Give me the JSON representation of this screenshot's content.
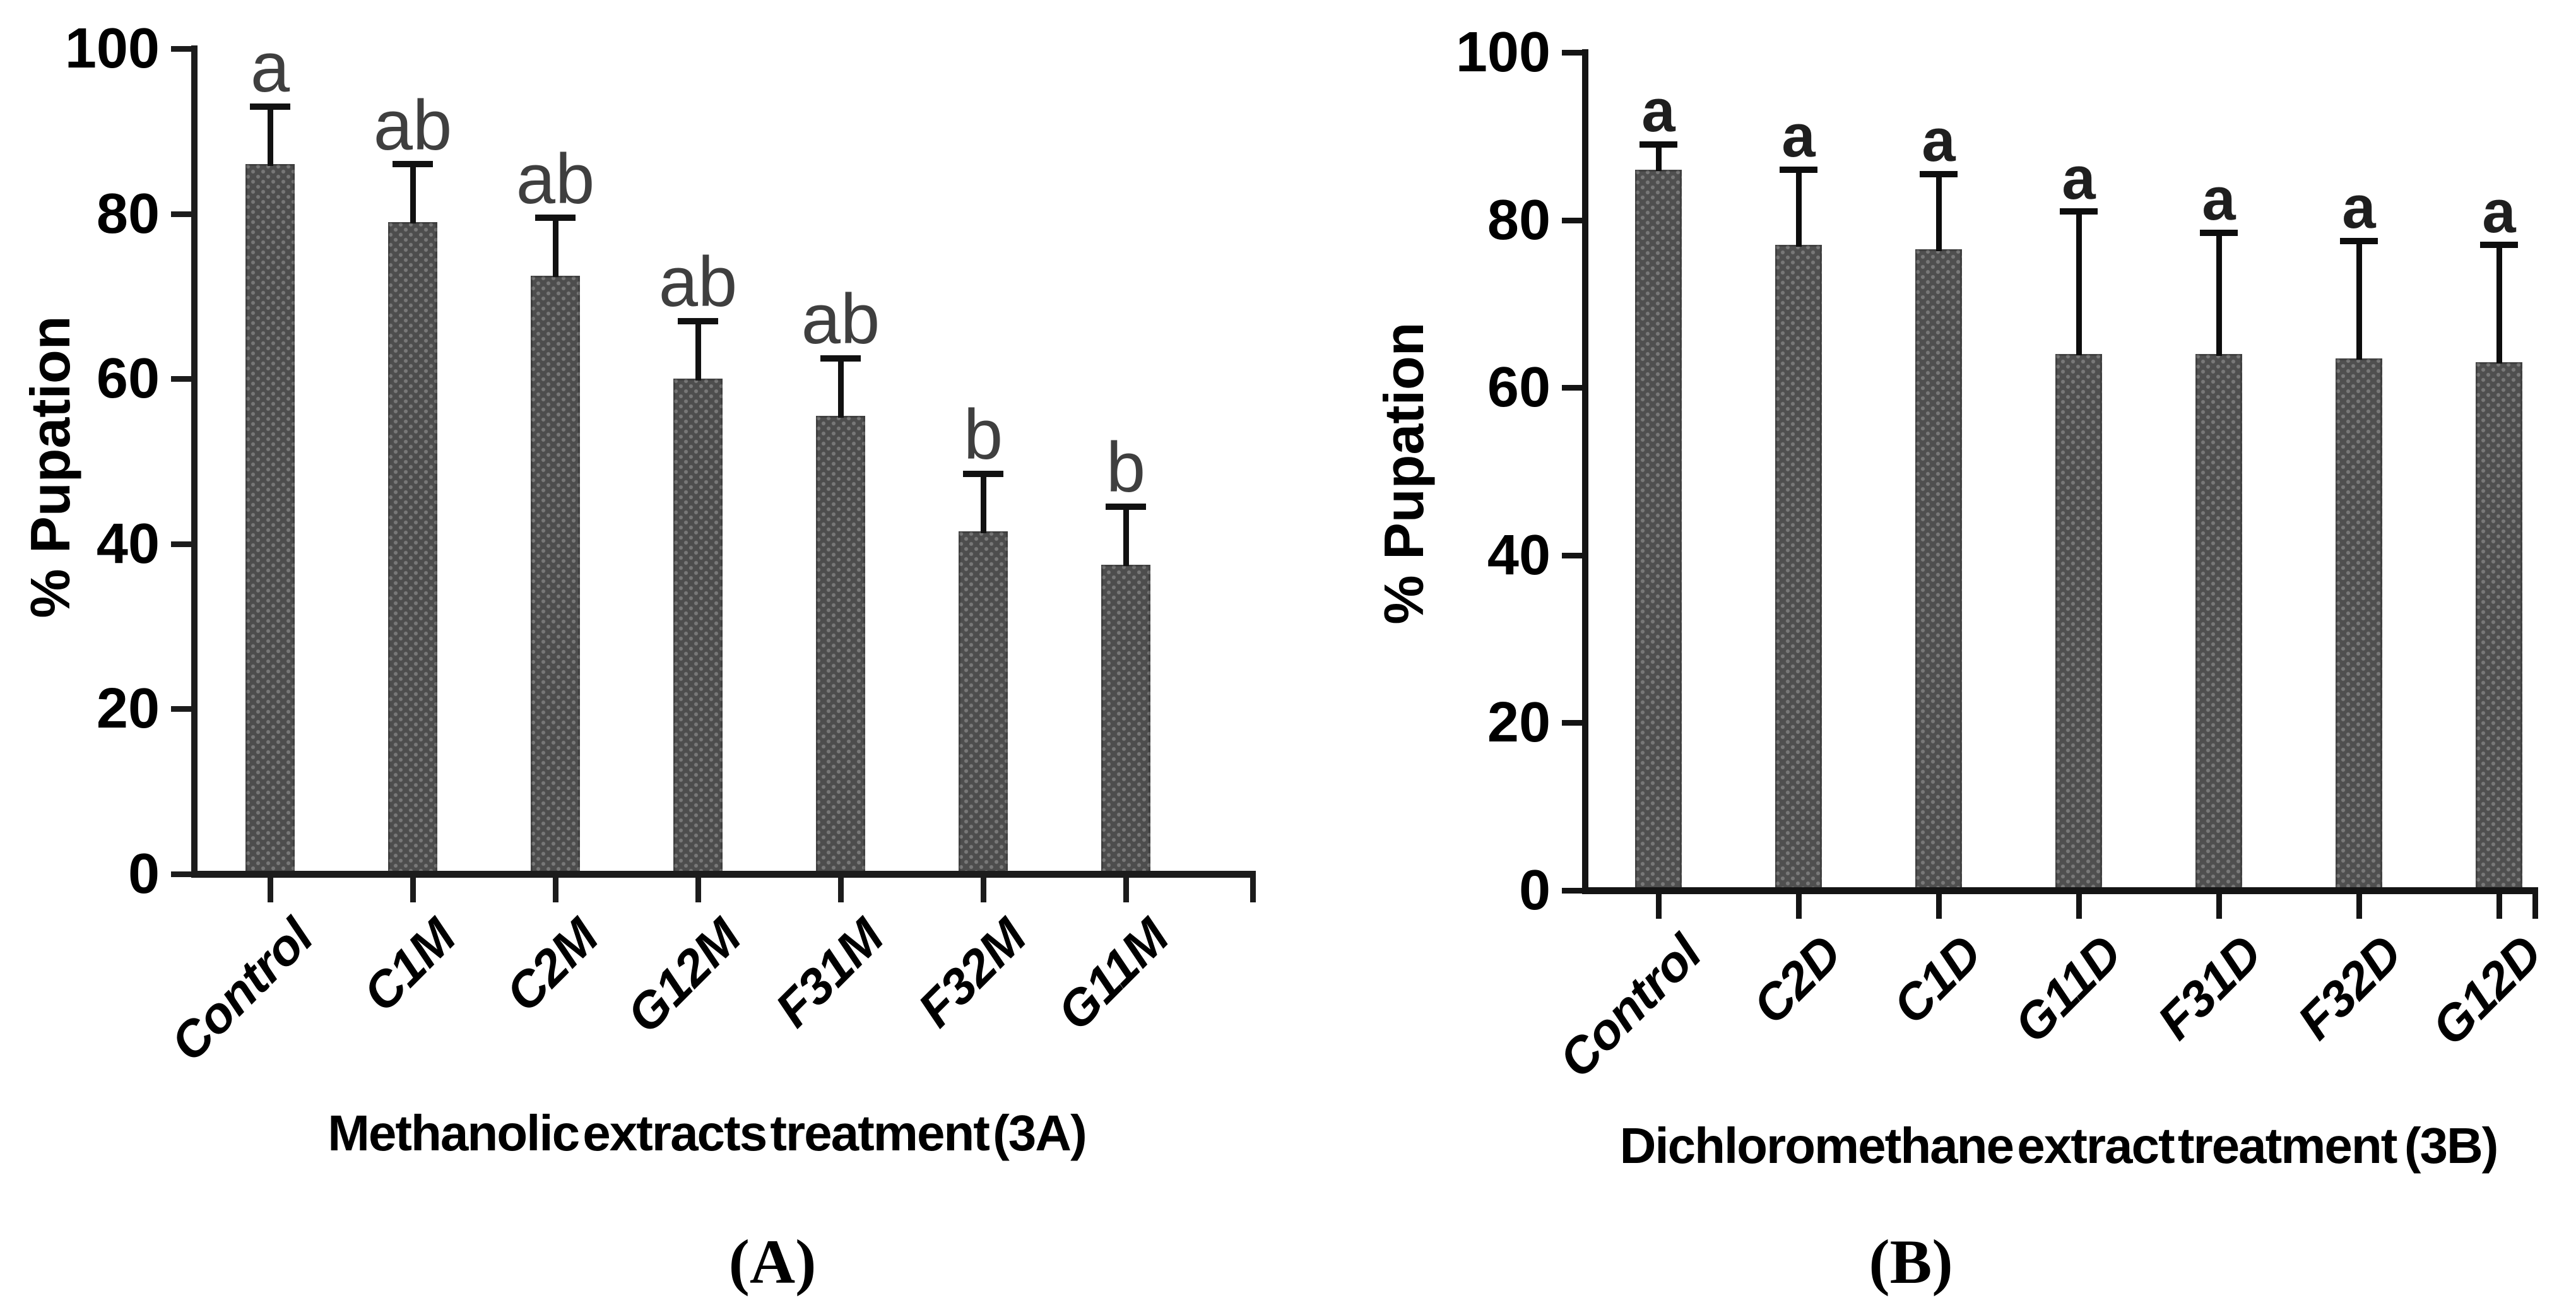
{
  "figure": {
    "background": "#ffffff",
    "description_visible_text_only": true
  },
  "chart_data": [
    {
      "type": "bar",
      "panel_caption": "(A)",
      "title": "",
      "xlabel": "Methanolic extracts treatment (3A)",
      "ylabel": "% Pupation",
      "ylim": [
        0,
        100
      ],
      "yticks": [
        0,
        20,
        40,
        60,
        80,
        100
      ],
      "grid": false,
      "legend": "none",
      "categories": [
        "Control",
        "C1M",
        "C2M",
        "G12M",
        "F31M",
        "F32M",
        "G11M"
      ],
      "values": [
        86,
        79,
        72.5,
        60,
        55.5,
        41.5,
        37.5
      ],
      "error_upper": [
        7,
        7,
        7,
        7,
        7,
        7,
        7
      ],
      "sig_letters": [
        "a",
        "ab",
        "ab",
        "ab",
        "ab",
        "b",
        "b"
      ],
      "bar_color": "#4d4d4d",
      "error_color": "#111111",
      "axis_color": "#1c1c1c",
      "letter_color": "#3f3f3f"
    },
    {
      "type": "bar",
      "panel_caption": "(B)",
      "title": "",
      "xlabel": "Dichloromethane extract treatment  (3B)",
      "ylabel": "% Pupation",
      "ylim": [
        0,
        100
      ],
      "yticks": [
        0,
        20,
        40,
        60,
        80,
        100
      ],
      "grid": false,
      "legend": "none",
      "categories": [
        "Control",
        "C2D",
        "C1D",
        "G11D",
        "F31D",
        "F32D",
        "G12D"
      ],
      "values": [
        86,
        77,
        76.5,
        64,
        64,
        63.5,
        63
      ],
      "error_upper": [
        3,
        9,
        9,
        17,
        14.5,
        14,
        14
      ],
      "sig_letters": [
        "a",
        "a",
        "a",
        "a",
        "a",
        "a",
        "a"
      ],
      "bar_color": "#4f4f4f",
      "error_color": "#0d0d0d",
      "axis_color": "#141414",
      "letter_color": "#1f1f1f"
    }
  ]
}
